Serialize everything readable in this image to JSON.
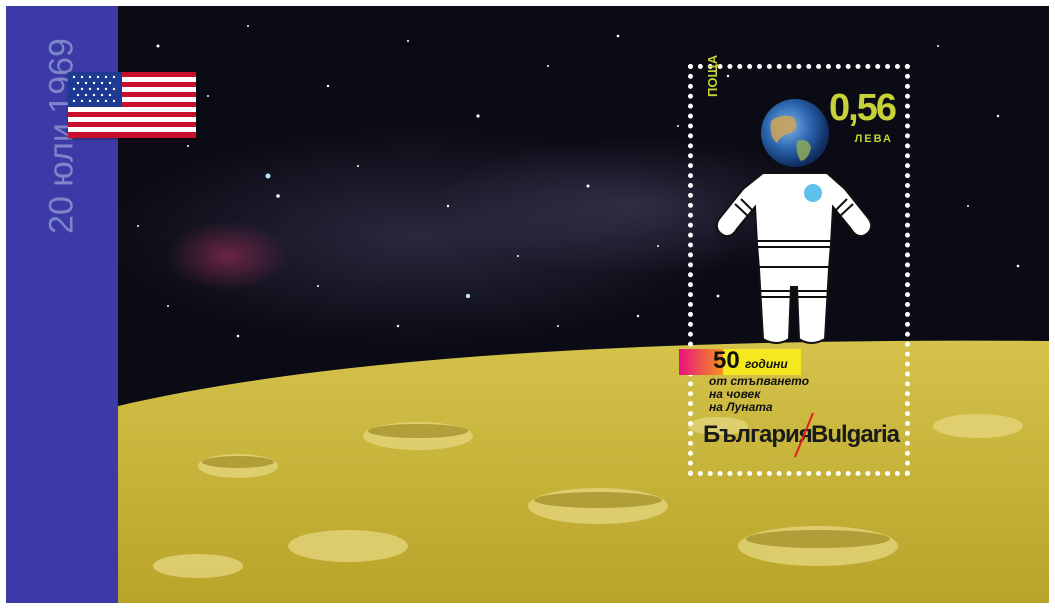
{
  "side_panel": {
    "date": "20 юли 1969",
    "background_color": "#3b3aa6",
    "text_color": "#7d86c8"
  },
  "flag": {
    "icon": "us-flag-icon"
  },
  "stamp": {
    "post_label": "ПОЩА",
    "denomination": "0,56",
    "currency": "ЛЕВА",
    "anniversary_number": "50",
    "anniversary_word": "години",
    "caption_lines": [
      "от стъпването",
      "на човек",
      "на Луната"
    ],
    "country_bg": "България",
    "country_en": "Bulgaria",
    "accent_color": "#c6d238"
  },
  "scene": {
    "sky_color": "#0a0b14",
    "moon_color": "#c7b338"
  }
}
